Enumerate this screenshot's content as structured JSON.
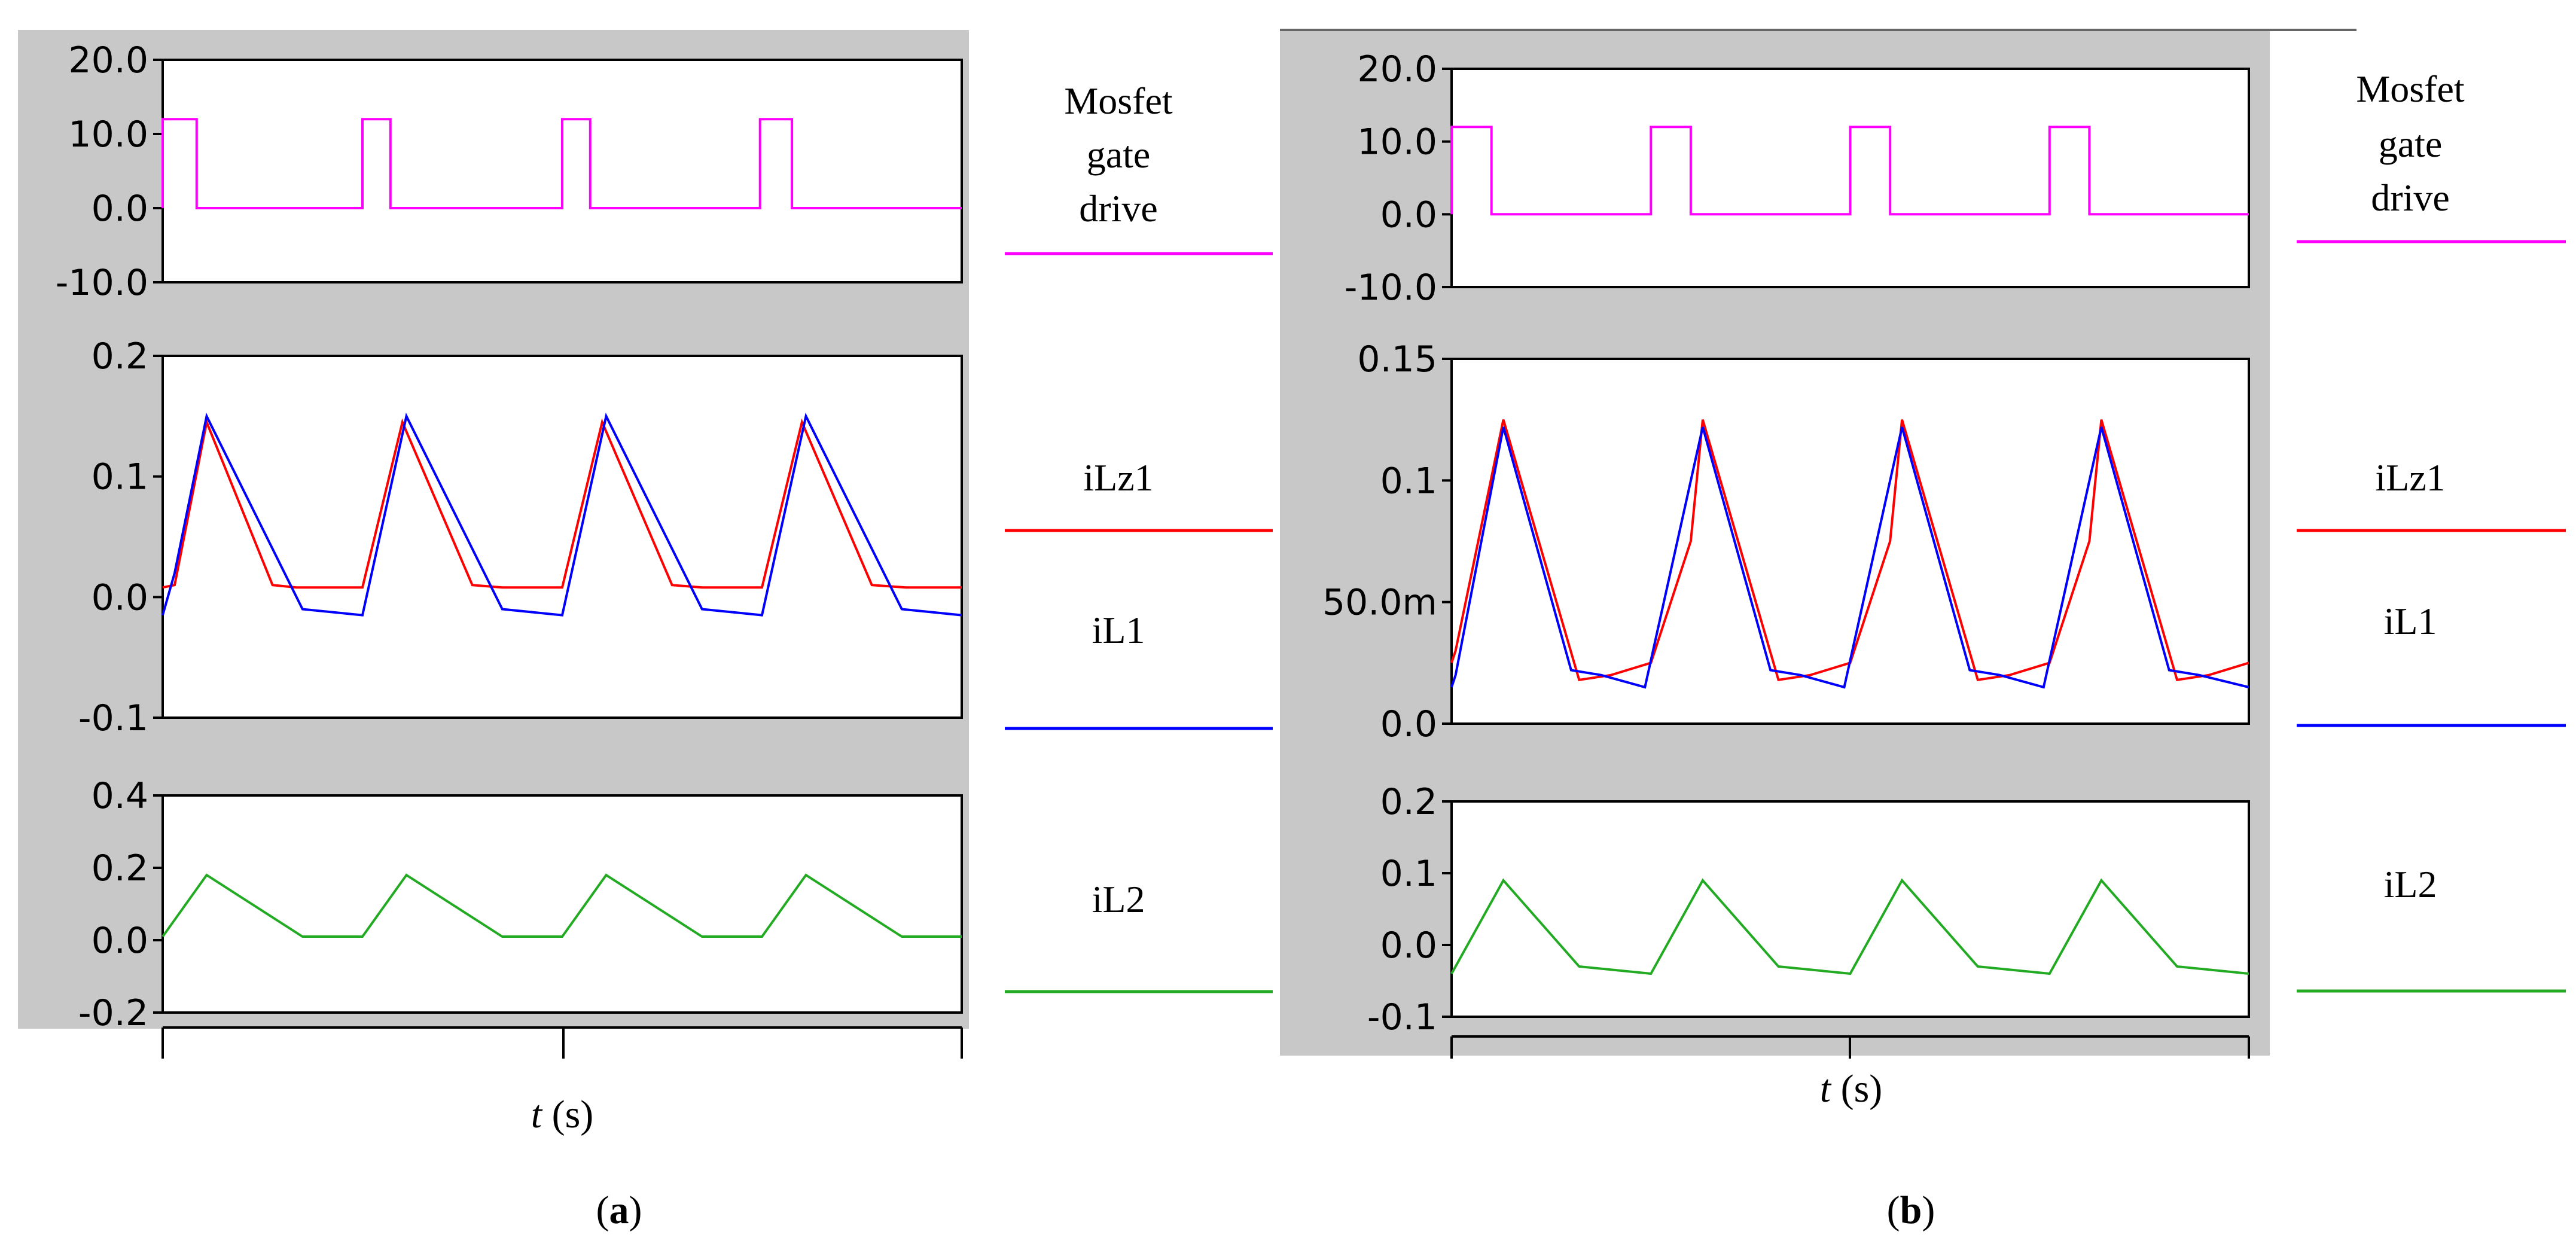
{
  "chart_data": [
    {
      "id": "a",
      "type": "line",
      "panel_label": "a",
      "xlabel_italic": "t",
      "xlabel_unit": "(s)",
      "x_range": [
        0,
        4
      ],
      "subplots": [
        {
          "id": "gate",
          "ylim": [
            -10,
            20
          ],
          "yticks": [
            20,
            10,
            0,
            -10
          ],
          "ytick_labels": [
            "20.0",
            "10.0",
            "0.0",
            "-10.0"
          ],
          "series": [
            {
              "name": "Mosfet gate drive",
              "legend_lines": [
                "Mosfet",
                "gate",
                "drive"
              ],
              "color": "#ff00ff",
              "x": [
                0,
                0,
                0.17,
                0.17,
                1,
                1,
                1.14,
                1.14,
                2,
                2,
                2.14,
                2.14,
                2.99,
                2.99,
                3.15,
                3.15,
                4
              ],
              "y": [
                0,
                12,
                12,
                0,
                0,
                12,
                12,
                0,
                0,
                12,
                12,
                0,
                0,
                12,
                12,
                0,
                0
              ]
            }
          ]
        },
        {
          "id": "currents1",
          "ylim": [
            -0.1,
            0.2
          ],
          "yticks": [
            0.2,
            0.1,
            0.0,
            -0.1
          ],
          "ytick_labels": [
            "0.2",
            "0.1",
            "0.0",
            "-0.1"
          ],
          "series": [
            {
              "name": "iLz1",
              "legend_lines": [
                "iLz1"
              ],
              "color": "#ff0000",
              "x": [
                0,
                0.06,
                0.22,
                0.55,
                0.67,
                1.0,
                1.2,
                1.55,
                1.7,
                2.0,
                2.2,
                2.55,
                2.7,
                3.0,
                3.2,
                3.55,
                3.72,
                4.0
              ],
              "y": [
                0.008,
                0.01,
                0.145,
                0.01,
                0.008,
                0.008,
                0.145,
                0.01,
                0.008,
                0.008,
                0.145,
                0.01,
                0.008,
                0.008,
                0.145,
                0.01,
                0.008,
                0.008
              ]
            },
            {
              "name": "iL1",
              "legend_lines": [
                "iL1"
              ],
              "color": "#0000ff",
              "x": [
                0,
                0.06,
                0.22,
                0.7,
                1.0,
                1.22,
                1.7,
                2.0,
                2.22,
                2.7,
                3.0,
                3.22,
                3.7,
                4.0
              ],
              "y": [
                -0.015,
                0.02,
                0.15,
                -0.01,
                -0.015,
                0.15,
                -0.01,
                -0.015,
                0.15,
                -0.01,
                -0.015,
                0.15,
                -0.01,
                -0.015
              ]
            }
          ]
        },
        {
          "id": "currents2",
          "ylim": [
            -0.2,
            0.4
          ],
          "yticks": [
            0.4,
            0.2,
            0.0,
            -0.2
          ],
          "ytick_labels": [
            "0.4",
            "0.2",
            "0.0",
            "-0.2"
          ],
          "series": [
            {
              "name": "iL2",
              "legend_lines": [
                "iL2"
              ],
              "color": "#22aa22",
              "x": [
                0,
                0.22,
                0.7,
                1.0,
                1.22,
                1.7,
                2.0,
                2.22,
                2.7,
                3.0,
                3.22,
                3.7,
                4.0
              ],
              "y": [
                0.01,
                0.18,
                0.01,
                0.01,
                0.18,
                0.01,
                0.01,
                0.18,
                0.01,
                0.01,
                0.18,
                0.01,
                0.01
              ]
            }
          ]
        }
      ]
    },
    {
      "id": "b",
      "type": "line",
      "panel_label": "b",
      "xlabel_italic": "t",
      "xlabel_unit": "(s)",
      "x_range": [
        0,
        4
      ],
      "subplots": [
        {
          "id": "gate",
          "ylim": [
            -10,
            20
          ],
          "yticks": [
            20,
            10,
            0,
            -10
          ],
          "ytick_labels": [
            "20.0",
            "10.0",
            "0.0",
            "-10.0"
          ],
          "series": [
            {
              "name": "Mosfet gate drive",
              "legend_lines": [
                "Mosfet",
                "gate",
                "drive"
              ],
              "color": "#ff00ff",
              "x": [
                0,
                0,
                0.2,
                0.2,
                1,
                1,
                1.2,
                1.2,
                2,
                2,
                2.2,
                2.2,
                3,
                3,
                3.2,
                3.2,
                4
              ],
              "y": [
                0,
                12,
                12,
                0,
                0,
                12,
                12,
                0,
                0,
                12,
                12,
                0,
                0,
                12,
                12,
                0,
                0
              ]
            }
          ]
        },
        {
          "id": "currents1",
          "ylim": [
            0,
            0.15
          ],
          "yticks": [
            0.15,
            0.1,
            0.05,
            0.0
          ],
          "ytick_labels": [
            "0.15",
            "0.1",
            "50.0m",
            "0.0"
          ],
          "series": [
            {
              "name": "iLz1",
              "legend_lines": [
                "iLz1"
              ],
              "color": "#ff0000",
              "x": [
                0,
                0.02,
                0.26,
                0.64,
                0.8,
                1.0,
                1.2,
                1.26,
                1.64,
                1.8,
                2.0,
                2.2,
                2.26,
                2.64,
                2.8,
                3.0,
                3.2,
                3.26,
                3.64,
                3.8,
                4.0
              ],
              "y": [
                0.025,
                0.03,
                0.125,
                0.018,
                0.02,
                0.025,
                0.075,
                0.125,
                0.018,
                0.02,
                0.025,
                0.075,
                0.125,
                0.018,
                0.02,
                0.025,
                0.075,
                0.125,
                0.018,
                0.02,
                0.025
              ]
            },
            {
              "name": "iL1",
              "legend_lines": [
                "iL1"
              ],
              "color": "#0000ff",
              "x": [
                0,
                0.02,
                0.26,
                0.6,
                0.75,
                0.97,
                1.26,
                1.6,
                1.75,
                1.97,
                2.26,
                2.6,
                2.75,
                2.97,
                3.26,
                3.6,
                3.75,
                4.0
              ],
              "y": [
                0.015,
                0.02,
                0.122,
                0.022,
                0.02,
                0.015,
                0.122,
                0.022,
                0.02,
                0.015,
                0.122,
                0.022,
                0.02,
                0.015,
                0.122,
                0.022,
                0.02,
                0.015
              ]
            }
          ]
        },
        {
          "id": "currents2",
          "ylim": [
            -0.1,
            0.2
          ],
          "yticks": [
            0.2,
            0.1,
            0.0,
            -0.1
          ],
          "ytick_labels": [
            "0.2",
            "0.1",
            "0.0",
            "-0.1"
          ],
          "series": [
            {
              "name": "iL2",
              "legend_lines": [
                "iL2"
              ],
              "color": "#22aa22",
              "x": [
                0,
                0.26,
                0.64,
                1.0,
                1.26,
                1.64,
                2.0,
                2.26,
                2.64,
                3.0,
                3.26,
                3.64,
                4.0
              ],
              "y": [
                -0.04,
                0.09,
                -0.03,
                -0.04,
                0.09,
                -0.03,
                -0.04,
                0.09,
                -0.03,
                -0.04,
                0.09,
                -0.03,
                -0.04
              ]
            }
          ]
        }
      ]
    }
  ]
}
